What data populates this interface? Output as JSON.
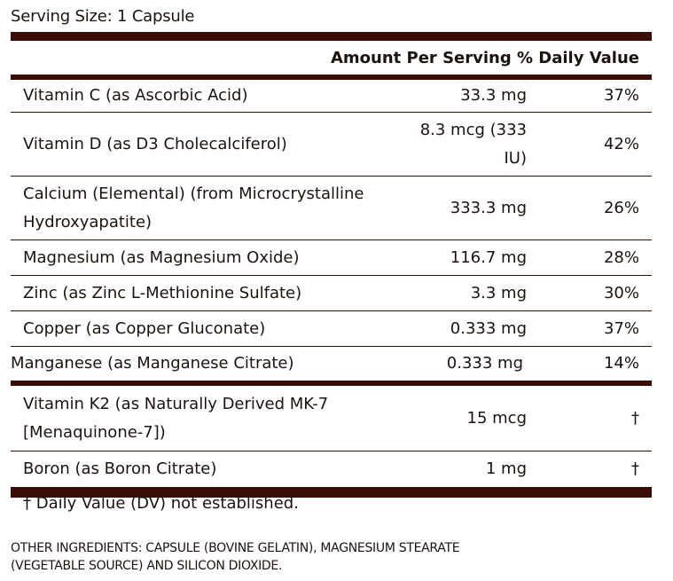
{
  "serving_size": "Serving Size: 1 Capsule",
  "header": {
    "amount_dv_label": "Amount Per Serving % Daily Value"
  },
  "rows": [
    {
      "name": "Vitamin C (as Ascorbic Acid)",
      "amount": "33.3 mg",
      "dv": "37%"
    },
    {
      "name": "Vitamin D (as D3 Cholecalciferol)",
      "amount": "8.3 mcg (333 IU)",
      "dv": "42%"
    },
    {
      "name": "Calcium (Elemental) (from Microcrystalline Hydroxyapatite)",
      "amount": "333.3 mg",
      "dv": "26%"
    },
    {
      "name": "Magnesium (as Magnesium Oxide)",
      "amount": "116.7 mg",
      "dv": "28%"
    },
    {
      "name": "Zinc (as Zinc L-Methionine Sulfate)",
      "amount": "3.3 mg",
      "dv": "30%"
    },
    {
      "name": "Copper (as Copper Gluconate)",
      "amount": "0.333 mg",
      "dv": "37%"
    },
    {
      "name": "Manganese (as Manganese Citrate)",
      "amount": "0.333 mg",
      "dv": "14%"
    },
    {
      "name": "Vitamin K2 (as Naturally Derived MK-7 [Menaquinone-7])",
      "amount": "15 mcg",
      "dv": "†"
    },
    {
      "name": "Boron (as Boron Citrate)",
      "amount": "1 mg",
      "dv": "†"
    }
  ],
  "footnote": "† Daily Value (DV) not established.",
  "other_ingredients": "OTHER INGREDIENTS: CAPSULE (BOVINE GELATIN), MAGNESIUM STEARATE (VEGETABLE SOURCE) AND SILICON DIOXIDE.",
  "colors": {
    "bar": "#3a0e05",
    "text": "#1c1310"
  }
}
